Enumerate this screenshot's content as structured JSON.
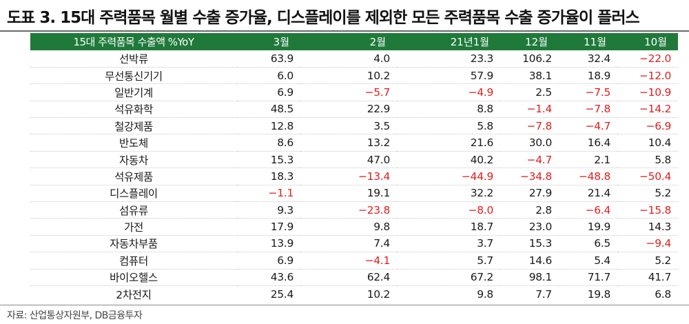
{
  "title": "도표 3. 15대 주력품목 월별 수출 증가율, 디스플레이를 제외한 모든 주력품목 수출 증가율이 플러스",
  "table": {
    "headers": [
      "15대 주력품목 수출액 %YoY",
      "3월",
      "2월",
      "21년1월",
      "12월",
      "11월",
      "10월"
    ],
    "rows": [
      [
        "선박류",
        "63.9",
        "4.0",
        "23.3",
        "106.2",
        "32.4",
        "−22.0"
      ],
      [
        "무선통신기기",
        "6.0",
        "10.2",
        "57.9",
        "38.1",
        "18.9",
        "−12.0"
      ],
      [
        "일반기계",
        "6.9",
        "−5.7",
        "−4.9",
        "2.5",
        "−7.5",
        "−10.9"
      ],
      [
        "석유화학",
        "48.5",
        "22.9",
        "8.8",
        "−1.4",
        "−7.8",
        "−14.2"
      ],
      [
        "철강제품",
        "12.8",
        "3.5",
        "5.8",
        "−7.8",
        "−4.7",
        "−6.9"
      ],
      [
        "반도체",
        "8.6",
        "13.2",
        "21.6",
        "30.0",
        "16.4",
        "10.4"
      ],
      [
        "자동차",
        "15.3",
        "47.0",
        "40.2",
        "−4.7",
        "2.1",
        "5.8"
      ],
      [
        "석유제품",
        "18.3",
        "−13.4",
        "−44.9",
        "−34.8",
        "−48.8",
        "−50.4"
      ],
      [
        "디스플레이",
        "−1.1",
        "19.1",
        "32.2",
        "27.9",
        "21.4",
        "5.2"
      ],
      [
        "섬유류",
        "9.3",
        "−23.8",
        "−8.0",
        "2.8",
        "−6.4",
        "−15.8"
      ],
      [
        "가전",
        "17.9",
        "9.8",
        "18.7",
        "23.0",
        "19.9",
        "14.3"
      ],
      [
        "자동차부품",
        "13.9",
        "7.4",
        "3.7",
        "15.3",
        "6.5",
        "−9.4"
      ],
      [
        "컴퓨터",
        "6.9",
        "−4.1",
        "5.7",
        "14.6",
        "5.4",
        "5.2"
      ],
      [
        "바이오헬스",
        "43.6",
        "62.4",
        "67.2",
        "98.1",
        "71.7",
        "41.7"
      ],
      [
        "2차전지",
        "25.4",
        "10.2",
        "9.8",
        "7.7",
        "19.8",
        "6.8"
      ]
    ]
  },
  "source": "자료: 산업통상자원부, DB금융투자",
  "colors": {
    "header_bg": "#1f7a3a",
    "negative": "#e01e1e"
  }
}
